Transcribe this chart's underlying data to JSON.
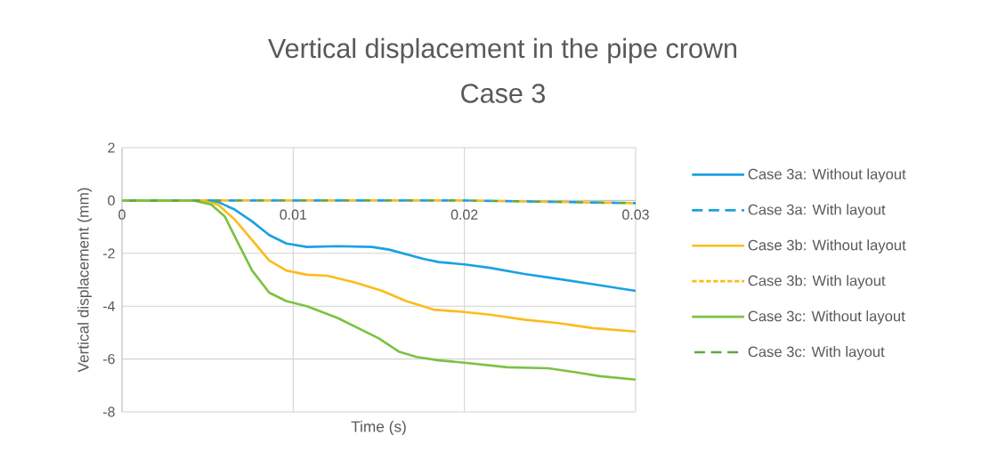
{
  "chart_data": {
    "type": "line",
    "title": "Vertical displacement in the pipe crown",
    "subtitle": "Case 3",
    "xlabel": "Time (s)",
    "ylabel": "Vertical displacement (mm)",
    "xlim": [
      0,
      0.03
    ],
    "ylim": [
      -8,
      2
    ],
    "xticks": [
      0,
      0.01,
      0.02,
      0.03
    ],
    "yticks": [
      -8,
      -6,
      -4,
      -2,
      0,
      2
    ],
    "grid": true,
    "legend": "right",
    "series": [
      {
        "name": "Case 3a: Without layout",
        "color": "#1ba1e2",
        "line_style": "solid",
        "x": [
          0,
          0.0046,
          0.0056,
          0.0066,
          0.0076,
          0.0086,
          0.0096,
          0.0108,
          0.0126,
          0.0146,
          0.0156,
          0.0176,
          0.0185,
          0.02,
          0.0215,
          0.0235,
          0.0255,
          0.0275,
          0.03
        ],
        "values": [
          0,
          0,
          -0.05,
          -0.35,
          -0.79,
          -1.31,
          -1.63,
          -1.76,
          -1.73,
          -1.76,
          -1.86,
          -2.21,
          -2.33,
          -2.42,
          -2.55,
          -2.78,
          -2.97,
          -3.17,
          -3.42
        ]
      },
      {
        "name": "Case 3a: With layout",
        "color": "#1ba1e2",
        "line_style": "dashed",
        "x": [
          0,
          0.02,
          0.03
        ],
        "values": [
          0,
          0,
          -0.1
        ]
      },
      {
        "name": "Case 3b: Without layout",
        "color": "#fbbc1c",
        "line_style": "solid",
        "x": [
          0,
          0.0046,
          0.0056,
          0.0066,
          0.0076,
          0.0086,
          0.0096,
          0.0108,
          0.012,
          0.0136,
          0.0152,
          0.0166,
          0.0182,
          0.02,
          0.0215,
          0.0235,
          0.0255,
          0.0275,
          0.03
        ],
        "values": [
          0,
          0,
          -0.15,
          -0.73,
          -1.5,
          -2.27,
          -2.65,
          -2.81,
          -2.85,
          -3.1,
          -3.42,
          -3.81,
          -4.13,
          -4.22,
          -4.32,
          -4.51,
          -4.64,
          -4.83,
          -4.96
        ]
      },
      {
        "name": "Case 3b: With layout",
        "color": "#fbbc1c",
        "line_style": "dotted",
        "x": [
          0,
          0.02,
          0.03
        ],
        "values": [
          0,
          0,
          -0.1
        ]
      },
      {
        "name": "Case 3c: Without layout",
        "color": "#7cc242",
        "line_style": "solid",
        "x": [
          0,
          0.0042,
          0.0052,
          0.006,
          0.0068,
          0.0076,
          0.0086,
          0.0096,
          0.0108,
          0.0126,
          0.015,
          0.0162,
          0.0172,
          0.0185,
          0.02,
          0.0225,
          0.0249,
          0.0265,
          0.0279,
          0.03
        ],
        "values": [
          0,
          0,
          -0.15,
          -0.6,
          -1.63,
          -2.65,
          -3.49,
          -3.81,
          -4.0,
          -4.45,
          -5.22,
          -5.73,
          -5.92,
          -6.05,
          -6.14,
          -6.31,
          -6.35,
          -6.5,
          -6.65,
          -6.78
        ]
      },
      {
        "name": "Case 3c: With layout",
        "color": "#5fa845",
        "line_style": "dashed",
        "x": [
          0,
          0.02,
          0.03
        ],
        "values": [
          0,
          0,
          -0.1
        ]
      }
    ]
  }
}
